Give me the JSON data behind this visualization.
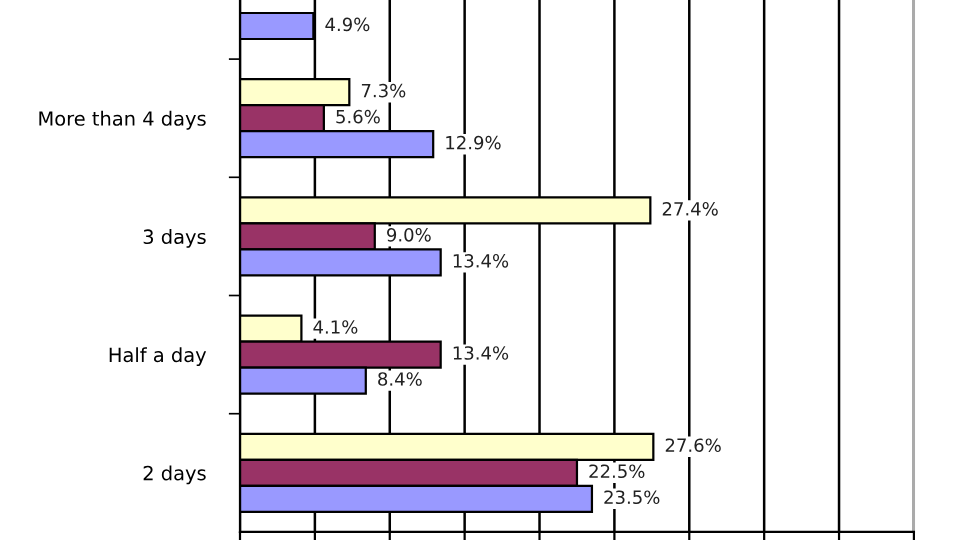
{
  "chart_data": {
    "type": "bar",
    "orientation": "horizontal",
    "categories": [
      null,
      "More than 4 days",
      "3 days",
      "Half a day",
      "2 days"
    ],
    "series": [
      {
        "color": "#ffffcc",
        "values": [
          null,
          7.3,
          27.4,
          4.1,
          27.6
        ],
        "value_labels": [
          null,
          "7.3%",
          "27.4%",
          "4.1%",
          "27.6%"
        ]
      },
      {
        "color": "#993366",
        "values": [
          null,
          5.6,
          9.0,
          13.4,
          22.5
        ],
        "value_labels": [
          null,
          "5.6%",
          "9.0%",
          "13.4%",
          "22.5%"
        ]
      },
      {
        "color": "#9999ff",
        "values": [
          4.9,
          12.9,
          13.4,
          8.4,
          23.5
        ],
        "value_labels": [
          "4.9%",
          "12.9%",
          "13.4%",
          "8.4%",
          "23.5%"
        ]
      }
    ],
    "xlim": [
      0,
      45
    ],
    "xticks": [
      {
        "value": 0,
        "label": null
      },
      {
        "value": 5,
        "label": null
      },
      {
        "value": 10,
        "label": null
      },
      {
        "value": 15,
        "label": null
      },
      {
        "value": 20,
        "label": null
      },
      {
        "value": 25,
        "label": null
      },
      {
        "value": 30,
        "label": null
      },
      {
        "value": 35,
        "label": null
      },
      {
        "value": 40,
        "label": null
      },
      {
        "value": 45,
        "label": null
      }
    ],
    "grid": "x",
    "legend": false
  }
}
